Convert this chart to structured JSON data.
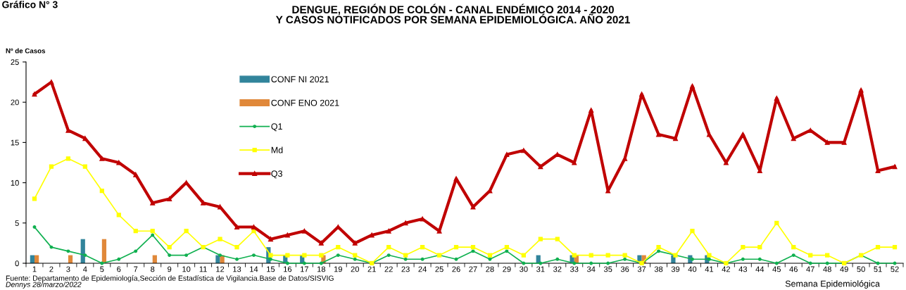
{
  "chart_data": {
    "type": "bar",
    "title": "DENGUE, REGIÓN DE COLÓN - CANAL ENDÉMICO 2014 - 2020\nY CASOS NOTIFICADOS POR SEMANA EPIDEMIOLÓGICA. AÑO 2021",
    "xlabel": "Semana Epidemiológica",
    "ylabel": "Nº de Casos",
    "annotations": [
      "Gráfico N° 3",
      "Fuente: Departamento de Epidemiología,Sección de Estadística de Vigilancia.Base de Datos/SISVIG",
      "Dennys 28/marzo/2022"
    ],
    "categories": [
      "1",
      "2",
      "3",
      "4",
      "5",
      "6",
      "7",
      "8",
      "9",
      "10",
      "11",
      "12",
      "13",
      "14",
      "15",
      "16",
      "17",
      "18",
      "19",
      "20",
      "21",
      "22",
      "23",
      "24",
      "25",
      "26",
      "27",
      "28",
      "29",
      "30",
      "31",
      "32",
      "33",
      "34",
      "35",
      "36",
      "37",
      "38",
      "39",
      "40",
      "41",
      "42",
      "43",
      "44",
      "45",
      "46",
      "47",
      "48",
      "49",
      "50",
      "51",
      "52"
    ],
    "series": [
      {
        "name": "CONF NI 2021",
        "color": "#31849b",
        "values": [
          1,
          null,
          null,
          3,
          null,
          null,
          null,
          null,
          null,
          null,
          null,
          1,
          null,
          null,
          2,
          1,
          1,
          null,
          null,
          null,
          null,
          null,
          null,
          null,
          null,
          null,
          null,
          null,
          null,
          null,
          1,
          null,
          1,
          null,
          null,
          null,
          1,
          null,
          1,
          1,
          1,
          null,
          null,
          null,
          null,
          null,
          null,
          null,
          null,
          null,
          null,
          null
        ]
      },
      {
        "name": "CONF ENO 2021",
        "color": "#e0883a",
        "values": [
          1,
          null,
          1,
          null,
          3,
          null,
          null,
          1,
          null,
          null,
          null,
          1,
          null,
          null,
          null,
          null,
          null,
          1,
          null,
          null,
          null,
          null,
          null,
          null,
          null,
          null,
          null,
          null,
          null,
          null,
          null,
          null,
          1,
          null,
          null,
          null,
          1,
          null,
          null,
          null,
          null,
          null,
          null,
          null,
          null,
          null,
          null,
          null,
          null,
          null,
          null,
          null
        ]
      },
      {
        "name": "Q1",
        "type": "line",
        "color": "#10b050",
        "marker": "circle",
        "values": [
          4.5,
          2,
          1.5,
          1,
          0,
          0.5,
          1.5,
          3.5,
          1,
          1,
          2,
          1,
          0.5,
          1,
          0.5,
          0,
          0,
          0,
          1,
          0.5,
          0,
          1,
          0.5,
          0.5,
          1,
          0.5,
          1.5,
          0.5,
          1.5,
          0,
          0,
          0.5,
          0,
          0,
          0,
          0.5,
          0,
          1.5,
          1,
          0.5,
          0.5,
          0,
          0.5,
          0.5,
          0,
          1,
          0,
          0,
          0,
          1,
          0,
          0
        ]
      },
      {
        "name": "Md",
        "type": "line",
        "color": "#ffff00",
        "marker": "square",
        "values": [
          8,
          12,
          13,
          12,
          9,
          6,
          4,
          4,
          2,
          4,
          2,
          3,
          2,
          4,
          1,
          1,
          1,
          1,
          2,
          1,
          0,
          2,
          1,
          2,
          1,
          2,
          2,
          1,
          2,
          1,
          3,
          3,
          1,
          1,
          1,
          1,
          0,
          2,
          1,
          4,
          1,
          0,
          2,
          2,
          5,
          2,
          1,
          1,
          0,
          1,
          2,
          2
        ]
      },
      {
        "name": "Q3",
        "type": "line",
        "color": "#c00000",
        "marker": "triangle",
        "values": [
          21,
          22.5,
          16.5,
          15.5,
          13,
          12.5,
          11,
          7.5,
          8,
          10,
          7.5,
          7,
          4.5,
          4.5,
          3,
          3.5,
          4,
          2.5,
          4.5,
          2.5,
          3.5,
          4,
          5,
          5.5,
          4,
          10.5,
          7,
          9,
          13.5,
          14,
          12,
          13.5,
          12.5,
          19,
          9,
          13,
          21,
          16,
          15.5,
          22,
          16,
          12.5,
          16,
          11.5,
          20.5,
          15.5,
          16.5,
          15,
          15,
          21.5,
          11.5,
          12
        ]
      }
    ],
    "ylim": [
      0,
      25
    ],
    "yticks": [
      0,
      5,
      10,
      15,
      20,
      25
    ],
    "grid": false,
    "legend": "top"
  }
}
